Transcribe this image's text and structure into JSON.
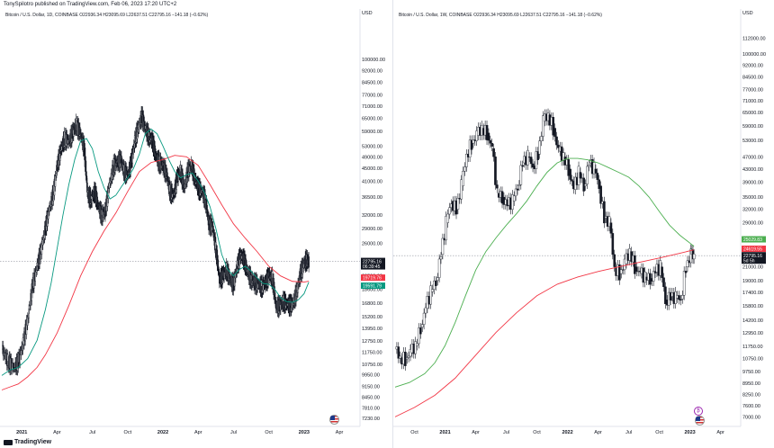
{
  "header": {
    "publisher": "TonySpilotro published on TradingView.com, Feb 06, 2023 17:20 UTC+2"
  },
  "logo": {
    "text": "TradingView"
  },
  "colors": {
    "up": "#131722",
    "down": "#131722",
    "ma_red": "#f23645",
    "ma_green": "#089981",
    "ma_green_right": "#4caf50"
  },
  "chart_data": [
    {
      "type": "candlestick",
      "legend": "Bitcoin / U.S. Dollar, 1D, COINBASE  O22936.34  H23095.69  L22637.51  C22795.16  −141.18 (−0.62%)",
      "currency": "USD",
      "scale": "log",
      "ylim": [
        7000,
        130000
      ],
      "y_ticks": [
        "100000.00",
        "92000.00",
        "84500.00",
        "77000.00",
        "71000.00",
        "65000.00",
        "59000.00",
        "53000.00",
        "49000.00",
        "45000.00",
        "41000.00",
        "36500.00",
        "32000.00",
        "29000.00",
        "26000.00",
        "23000.00",
        "20500.00",
        "18600.00",
        "16800.00",
        "15200.00",
        "13950.00",
        "12750.00",
        "11750.00",
        "10750.00",
        "9950.00",
        "9150.00",
        "8450.00",
        "7810.00",
        "7230.00"
      ],
      "x_ticks": [
        "2021",
        "Apr",
        "Jul",
        "Oct",
        "2022",
        "Apr",
        "Jul",
        "Oct",
        "2023",
        "Apr"
      ],
      "x_range_months": [
        -1.7,
        28.6
      ],
      "close_path": [
        [
          -1.7,
          12000
        ],
        [
          -1.2,
          11000
        ],
        [
          -0.7,
          10500
        ],
        [
          -0.3,
          10900
        ],
        [
          0.1,
          12500
        ],
        [
          0.5,
          15000
        ],
        [
          0.9,
          19000
        ],
        [
          1.3,
          22000
        ],
        [
          1.6,
          24500
        ],
        [
          2.0,
          29000
        ],
        [
          2.3,
          33000
        ],
        [
          2.7,
          38000
        ],
        [
          3.0,
          46000
        ],
        [
          3.3,
          51000
        ],
        [
          3.6,
          56000
        ],
        [
          4.0,
          55000
        ],
        [
          4.3,
          58000
        ],
        [
          4.6,
          62000
        ],
        [
          5.0,
          58000
        ],
        [
          5.3,
          52000
        ],
        [
          5.6,
          37000
        ],
        [
          5.9,
          36000
        ],
        [
          6.2,
          38000
        ],
        [
          6.5,
          34000
        ],
        [
          6.8,
          32000
        ],
        [
          7.1,
          33000
        ],
        [
          7.4,
          39000
        ],
        [
          7.8,
          46000
        ],
        [
          8.1,
          47000
        ],
        [
          8.4,
          48000
        ],
        [
          8.7,
          44000
        ],
        [
          9.0,
          43000
        ],
        [
          9.3,
          47000
        ],
        [
          9.6,
          55000
        ],
        [
          9.9,
          61000
        ],
        [
          10.2,
          66000
        ],
        [
          10.5,
          60000
        ],
        [
          10.8,
          57000
        ],
        [
          11.1,
          55000
        ],
        [
          11.4,
          49000
        ],
        [
          11.7,
          47000
        ],
        [
          12.0,
          46000
        ],
        [
          12.3,
          43000
        ],
        [
          12.6,
          38000
        ],
        [
          12.9,
          37000
        ],
        [
          13.2,
          42000
        ],
        [
          13.5,
          44000
        ],
        [
          13.8,
          39000
        ],
        [
          14.1,
          44000
        ],
        [
          14.4,
          46000
        ],
        [
          14.7,
          42000
        ],
        [
          15.0,
          39000
        ],
        [
          15.3,
          38000
        ],
        [
          15.6,
          36000
        ],
        [
          15.9,
          30000
        ],
        [
          16.2,
          29500
        ],
        [
          16.5,
          25000
        ],
        [
          16.8,
          20000
        ],
        [
          17.1,
          20500
        ],
        [
          17.4,
          21500
        ],
        [
          17.7,
          20000
        ],
        [
          18.0,
          19200
        ],
        [
          18.3,
          22000
        ],
        [
          18.6,
          24000
        ],
        [
          18.9,
          23000
        ],
        [
          19.2,
          21000
        ],
        [
          19.5,
          20000
        ],
        [
          19.8,
          19500
        ],
        [
          20.1,
          19200
        ],
        [
          20.4,
          19000
        ],
        [
          20.7,
          19500
        ],
        [
          21.0,
          20500
        ],
        [
          21.3,
          20200
        ],
        [
          21.6,
          16500
        ],
        [
          21.9,
          16400
        ],
        [
          22.2,
          17000
        ],
        [
          22.5,
          16800
        ],
        [
          22.8,
          16500
        ],
        [
          23.1,
          16900
        ],
        [
          23.4,
          18500
        ],
        [
          23.7,
          21000
        ],
        [
          24.0,
          22500
        ],
        [
          24.2,
          23100
        ],
        [
          24.4,
          22800
        ]
      ],
      "ma_red_path": [
        [
          -1.7,
          8900
        ],
        [
          -1.0,
          9100
        ],
        [
          -0.3,
          9300
        ],
        [
          0.5,
          9800
        ],
        [
          1.3,
          10500
        ],
        [
          2.0,
          11500
        ],
        [
          3.0,
          13500
        ],
        [
          4.0,
          16500
        ],
        [
          5.0,
          20500
        ],
        [
          6.0,
          24500
        ],
        [
          7.0,
          28500
        ],
        [
          8.0,
          32500
        ],
        [
          9.0,
          38000
        ],
        [
          10.0,
          44000
        ],
        [
          11.0,
          47000
        ],
        [
          12.0,
          48000
        ],
        [
          13.0,
          49500
        ],
        [
          14.0,
          49000
        ],
        [
          15.0,
          46000
        ],
        [
          16.0,
          40000
        ],
        [
          17.0,
          34500
        ],
        [
          18.0,
          30000
        ],
        [
          19.0,
          27000
        ],
        [
          20.0,
          24500
        ],
        [
          21.0,
          22000
        ],
        [
          22.0,
          20500
        ],
        [
          23.0,
          19700
        ],
        [
          24.0,
          19600
        ],
        [
          24.4,
          19719
        ]
      ],
      "ma_green_path": [
        [
          -1.7,
          9900
        ],
        [
          -1.0,
          10300
        ],
        [
          -0.3,
          10500
        ],
        [
          0.5,
          11200
        ],
        [
          1.3,
          12800
        ],
        [
          2.0,
          16000
        ],
        [
          2.5,
          19500
        ],
        [
          3.0,
          25000
        ],
        [
          3.5,
          32000
        ],
        [
          4.0,
          40000
        ],
        [
          4.5,
          48000
        ],
        [
          5.0,
          55000
        ],
        [
          5.5,
          56000
        ],
        [
          6.0,
          52000
        ],
        [
          6.5,
          44000
        ],
        [
          7.0,
          39000
        ],
        [
          7.5,
          36000
        ],
        [
          8.0,
          37000
        ],
        [
          8.5,
          39500
        ],
        [
          9.0,
          42000
        ],
        [
          9.5,
          45000
        ],
        [
          10.0,
          50000
        ],
        [
          10.5,
          58000
        ],
        [
          11.0,
          60000
        ],
        [
          11.5,
          58000
        ],
        [
          12.0,
          53000
        ],
        [
          12.5,
          48000
        ],
        [
          13.0,
          44000
        ],
        [
          13.5,
          42000
        ],
        [
          14.0,
          43000
        ],
        [
          14.5,
          43500
        ],
        [
          15.0,
          41000
        ],
        [
          15.5,
          38000
        ],
        [
          16.0,
          34000
        ],
        [
          16.5,
          29000
        ],
        [
          17.0,
          24000
        ],
        [
          17.5,
          21500
        ],
        [
          18.0,
          20500
        ],
        [
          18.5,
          21500
        ],
        [
          19.0,
          22000
        ],
        [
          19.5,
          21200
        ],
        [
          20.0,
          20200
        ],
        [
          20.5,
          19400
        ],
        [
          21.0,
          19300
        ],
        [
          21.5,
          18600
        ],
        [
          22.0,
          17500
        ],
        [
          22.5,
          17000
        ],
        [
          23.0,
          16900
        ],
        [
          23.5,
          17200
        ],
        [
          24.0,
          18000
        ],
        [
          24.4,
          19591
        ]
      ],
      "last_price": {
        "value": 22795.16,
        "label": "22795.16",
        "sub": "06:39:45"
      },
      "ma_tags": [
        {
          "label": "19719.76",
          "value": 19719.76,
          "color": "#f23645"
        },
        {
          "label": "19591.79",
          "value": 19591.79,
          "color": "#089981"
        }
      ]
    },
    {
      "type": "candlestick",
      "legend": "Bitcoin / U.S. Dollar, 1W, COINBASE  O22936.34  H23095.69  L22637.51  C22795.16  −141.18 (−0.62%)",
      "currency": "USD",
      "scale": "log",
      "ylim": [
        6700,
        125000
      ],
      "y_ticks": [
        "112000.00",
        "100000.00",
        "92000.00",
        "84500.00",
        "77000.00",
        "71000.00",
        "65000.00",
        "59000.00",
        "53000.00",
        "47000.00",
        "43000.00",
        "39000.00",
        "35000.00",
        "32000.00",
        "29000.00",
        "26000.00",
        "23000.00",
        "21000.00",
        "19000.00",
        "17400.00",
        "15800.00",
        "14200.00",
        "12950.00",
        "11750.00",
        "10750.00",
        "9750.00",
        "8950.00",
        "8250.00",
        "7600.00",
        "7000.00"
      ],
      "x_ticks": [
        "Oct",
        "2021",
        "Apr",
        "Jul",
        "Oct",
        "2022",
        "Apr",
        "Jul",
        "Oct",
        "2023",
        "Apr"
      ],
      "x_range_months": [
        -4.9,
        28.8
      ],
      "close_path": [
        [
          -4.9,
          11500
        ],
        [
          -4.4,
          10800
        ],
        [
          -3.9,
          10700
        ],
        [
          -3.4,
          11200
        ],
        [
          -2.9,
          11800
        ],
        [
          -2.4,
          13500
        ],
        [
          -1.9,
          15500
        ],
        [
          -1.4,
          17500
        ],
        [
          -0.9,
          19000
        ],
        [
          -0.4,
          23000
        ],
        [
          0.1,
          29000
        ],
        [
          0.6,
          34000
        ],
        [
          1.1,
          32000
        ],
        [
          1.6,
          38000
        ],
        [
          2.1,
          48000
        ],
        [
          2.6,
          52000
        ],
        [
          3.1,
          55000
        ],
        [
          3.6,
          58000
        ],
        [
          4.1,
          56000
        ],
        [
          4.6,
          50000
        ],
        [
          5.1,
          36000
        ],
        [
          5.6,
          35000
        ],
        [
          6.1,
          33000
        ],
        [
          6.6,
          34000
        ],
        [
          7.1,
          38000
        ],
        [
          7.6,
          45000
        ],
        [
          8.1,
          47000
        ],
        [
          8.6,
          44000
        ],
        [
          9.1,
          48000
        ],
        [
          9.6,
          61000
        ],
        [
          10.1,
          64000
        ],
        [
          10.6,
          58000
        ],
        [
          11.1,
          49000
        ],
        [
          11.6,
          47000
        ],
        [
          12.1,
          43000
        ],
        [
          12.6,
          37000
        ],
        [
          13.1,
          42000
        ],
        [
          13.6,
          38000
        ],
        [
          14.1,
          45000
        ],
        [
          14.6,
          43000
        ],
        [
          15.1,
          38000
        ],
        [
          15.6,
          30000
        ],
        [
          16.1,
          29000
        ],
        [
          16.6,
          21000
        ],
        [
          17.1,
          20000
        ],
        [
          17.6,
          21500
        ],
        [
          18.1,
          23500
        ],
        [
          18.6,
          21000
        ],
        [
          19.1,
          20000
        ],
        [
          19.6,
          19500
        ],
        [
          20.1,
          19300
        ],
        [
          20.6,
          20200
        ],
        [
          21.1,
          21000
        ],
        [
          21.6,
          16500
        ],
        [
          22.1,
          16900
        ],
        [
          22.6,
          16700
        ],
        [
          23.1,
          16600
        ],
        [
          23.6,
          21000
        ],
        [
          24.1,
          23000
        ],
        [
          24.4,
          22795
        ]
      ],
      "ma_red_path": [
        [
          -4.9,
          7000
        ],
        [
          -3.0,
          7500
        ],
        [
          -1.0,
          8200
        ],
        [
          1.0,
          9300
        ],
        [
          3.0,
          11000
        ],
        [
          5.0,
          13000
        ],
        [
          7.0,
          15000
        ],
        [
          9.0,
          17000
        ],
        [
          11.0,
          18500
        ],
        [
          13.0,
          19500
        ],
        [
          15.0,
          20300
        ],
        [
          17.0,
          21000
        ],
        [
          19.0,
          21700
        ],
        [
          21.0,
          22400
        ],
        [
          23.0,
          23200
        ],
        [
          24.4,
          23800
        ]
      ],
      "ma_green_path": [
        [
          -4.9,
          8700
        ],
        [
          -3.5,
          9000
        ],
        [
          -2.0,
          9600
        ],
        [
          -1.0,
          10400
        ],
        [
          0.0,
          11800
        ],
        [
          1.0,
          14000
        ],
        [
          2.0,
          17000
        ],
        [
          3.0,
          20500
        ],
        [
          4.0,
          23500
        ],
        [
          5.0,
          26000
        ],
        [
          6.0,
          28500
        ],
        [
          7.0,
          31000
        ],
        [
          8.0,
          34000
        ],
        [
          9.0,
          38000
        ],
        [
          10.0,
          42000
        ],
        [
          11.0,
          45000
        ],
        [
          12.0,
          46500
        ],
        [
          13.0,
          46500
        ],
        [
          14.0,
          46000
        ],
        [
          15.0,
          45000
        ],
        [
          16.0,
          43500
        ],
        [
          17.0,
          42000
        ],
        [
          18.0,
          40500
        ],
        [
          19.0,
          38000
        ],
        [
          20.0,
          35000
        ],
        [
          21.0,
          31500
        ],
        [
          22.0,
          28500
        ],
        [
          23.0,
          26500
        ],
        [
          24.0,
          25000
        ],
        [
          24.4,
          24400
        ]
      ],
      "last_price": {
        "value": 22795.16,
        "label": "22795.16",
        "sub": "5d 5h"
      },
      "ma_tags": [
        {
          "label": "25029.83",
          "value": 25029.83,
          "color": "#4caf50"
        },
        {
          "label": "24619.55",
          "value": 24619.55,
          "color": "#f23645"
        }
      ]
    }
  ]
}
